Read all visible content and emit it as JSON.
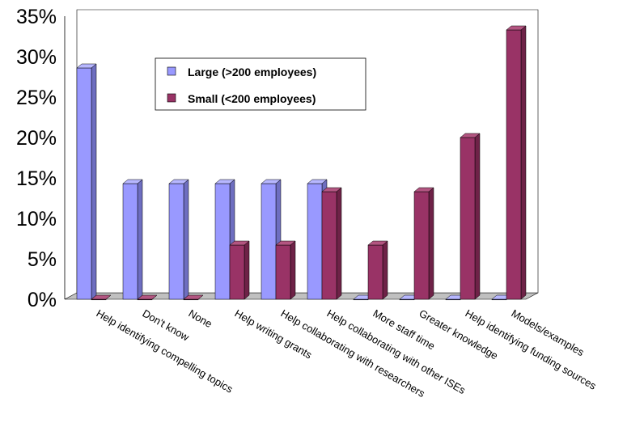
{
  "chart_data": {
    "type": "bar",
    "categories": [
      "Help identifying compelling topics",
      "Don't know",
      "None",
      "Help writing grants",
      "Help collaborating with researchers",
      "Help collaborating with other ISEs",
      "More staff time",
      "Greater knowledge",
      "Help identifying funding sources",
      "Models/examples"
    ],
    "series": [
      {
        "name": "Large (>200 employees)",
        "color": "#9999ff",
        "values": [
          28.6,
          14.3,
          14.3,
          14.3,
          14.3,
          14.3,
          0,
          0,
          0,
          0
        ]
      },
      {
        "name": "Small (<200 employees)",
        "color": "#993366",
        "values": [
          0,
          0,
          0,
          6.7,
          6.7,
          13.3,
          6.7,
          13.3,
          20.0,
          33.3
        ]
      }
    ],
    "yticks": [
      "0%",
      "5%",
      "10%",
      "15%",
      "20%",
      "25%",
      "30%",
      "35%"
    ],
    "ylim": [
      0,
      35
    ],
    "grid": false,
    "legend": "top-center",
    "title": "",
    "xlabel": "",
    "ylabel": ""
  }
}
